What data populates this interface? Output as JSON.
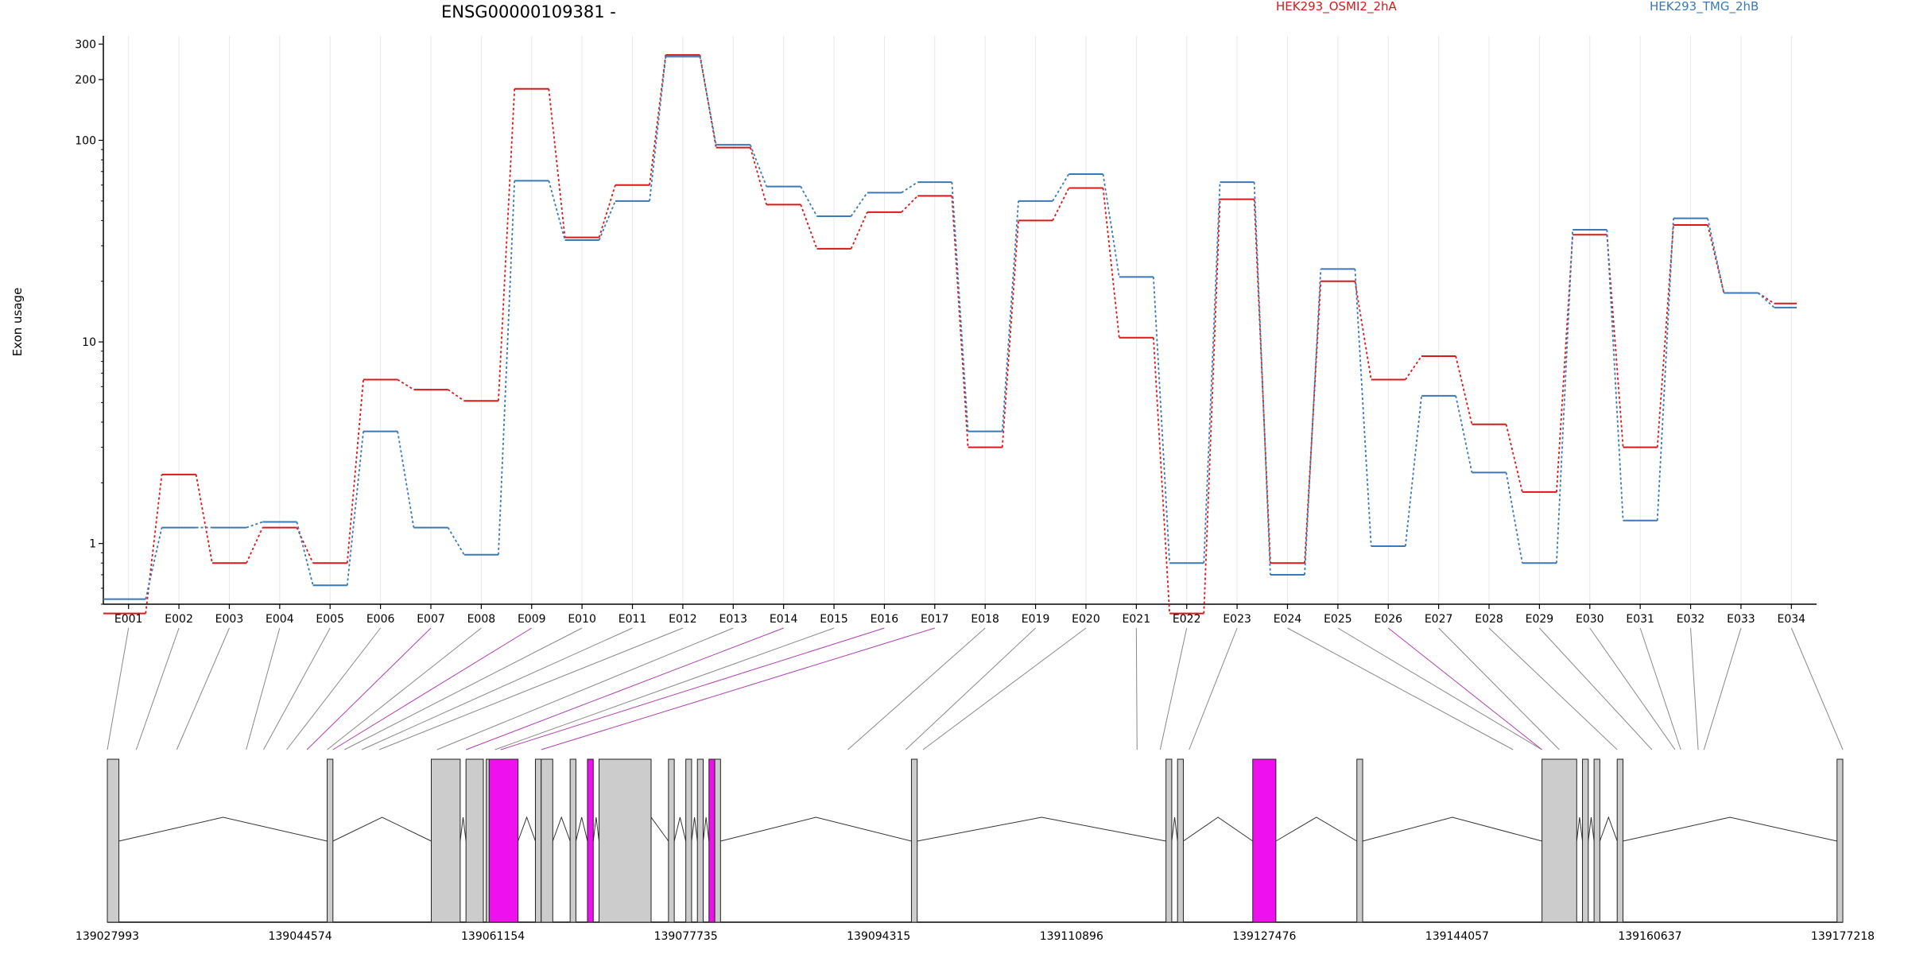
{
  "title": "ENSG00000109381 -",
  "ylabel": "Exon usage",
  "legend": [
    {
      "name": "HEK293_OSMI2_2hA",
      "color": "#d7191c"
    },
    {
      "name": "HEK293_TMG_2hB",
      "color": "#3a78b8"
    }
  ],
  "highlight_color": "#ee11ee",
  "chart_data": {
    "type": "line",
    "yscale": "log",
    "ylim": [
      0.5,
      330
    ],
    "yticks": [
      1,
      10,
      100,
      200,
      300
    ],
    "ytick_labels": [
      "1",
      "10",
      "100",
      "200",
      "300"
    ],
    "categories": [
      "E001",
      "E002",
      "E003",
      "E004",
      "E005",
      "E006",
      "E007",
      "E008",
      "E009",
      "E010",
      "E011",
      "E012",
      "E013",
      "E014",
      "E015",
      "E016",
      "E017",
      "E018",
      "E019",
      "E020",
      "E021",
      "E022",
      "E023",
      "E024",
      "E025",
      "E026",
      "E027",
      "E028",
      "E029",
      "E030",
      "E031",
      "E032",
      "E033",
      "E034"
    ],
    "series": [
      {
        "name": "HEK293_OSMI2_2hA",
        "color": "#d7191c",
        "values": [
          0.45,
          2.2,
          0.8,
          1.2,
          0.8,
          6.5,
          5.8,
          5.1,
          180,
          33,
          60,
          265,
          92,
          48,
          29,
          44,
          53,
          3.0,
          40,
          58,
          10.5,
          0.45,
          51,
          0.8,
          20,
          6.5,
          8.5,
          3.9,
          1.8,
          34,
          3.0,
          38,
          17.5,
          15.5
        ]
      },
      {
        "name": "HEK293_TMG_2hB",
        "color": "#3a78b8",
        "values": [
          0.53,
          1.2,
          1.2,
          1.28,
          0.62,
          3.6,
          1.2,
          0.88,
          63,
          32,
          50,
          260,
          95,
          59,
          42,
          55,
          62,
          3.6,
          50,
          68,
          21,
          0.8,
          62,
          0.7,
          23,
          0.97,
          5.4,
          2.25,
          0.8,
          36,
          1.3,
          41,
          17.5,
          14.8
        ]
      }
    ]
  },
  "gene_model": {
    "coord_labels": [
      "139027993",
      "139044574",
      "139061154",
      "139077735",
      "139094315",
      "139110896",
      "139127476",
      "139144057",
      "139160637",
      "139177218"
    ],
    "exon_columns": [
      0.0,
      0.05,
      0.12,
      0.24,
      0.27,
      0.31,
      0.345,
      0.38,
      0.39,
      0.41,
      0.44,
      0.47,
      0.57,
      0.62,
      0.67,
      0.68,
      0.75,
      1.28,
      1.38,
      1.41,
      1.78,
      1.82,
      1.87,
      2.43,
      2.48,
      2.48,
      2.51,
      2.61,
      2.67,
      2.71,
      2.72,
      2.75,
      2.76,
      3.0
    ],
    "highlight_exons": [
      "E007",
      "E009",
      "E014",
      "E016",
      "E017",
      "E026"
    ]
  }
}
